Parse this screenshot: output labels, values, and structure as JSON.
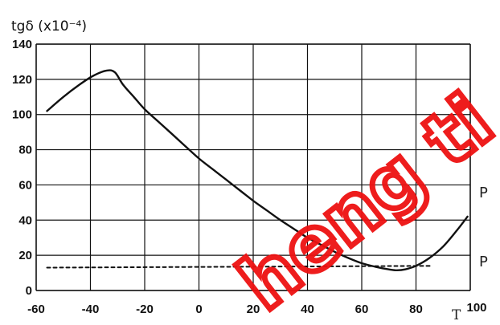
{
  "chart_data": {
    "type": "line",
    "ylabel": "tgδ  (x10⁻⁴)",
    "xlabel": "T",
    "xlim": [
      -60,
      100
    ],
    "ylim": [
      0,
      140
    ],
    "x_ticks": [
      -60,
      -40,
      -20,
      0,
      20,
      40,
      60,
      80,
      100
    ],
    "y_ticks": [
      0,
      20,
      40,
      60,
      80,
      100,
      120,
      140
    ],
    "grid": true,
    "series": [
      {
        "style": "solid",
        "x": [
          -56,
          -50,
          -44,
          -39,
          -34,
          -31,
          -28,
          -24,
          -20,
          -15,
          -10,
          -5,
          0,
          5,
          10,
          15,
          20,
          25,
          30,
          35,
          40,
          45,
          50,
          55,
          60,
          65,
          70,
          73,
          76,
          80,
          85,
          90,
          95,
          99
        ],
        "y": [
          102,
          110,
          117,
          122,
          125,
          124,
          117,
          110,
          103,
          96,
          89,
          82,
          75,
          69,
          63,
          57,
          51,
          45.5,
          40,
          35,
          30,
          26,
          22,
          18.5,
          15.5,
          13.5,
          12,
          11.5,
          12,
          14,
          18.5,
          25,
          34,
          42
        ]
      },
      {
        "style": "dotted",
        "x": [
          -56,
          86
        ],
        "y": [
          13,
          14
        ]
      }
    ],
    "right_labels": [
      "P",
      "P"
    ]
  },
  "watermark": {
    "text": "heng ti",
    "color": "#ee1111"
  },
  "colors": {
    "line": "#111111",
    "grid": "#111111"
  }
}
